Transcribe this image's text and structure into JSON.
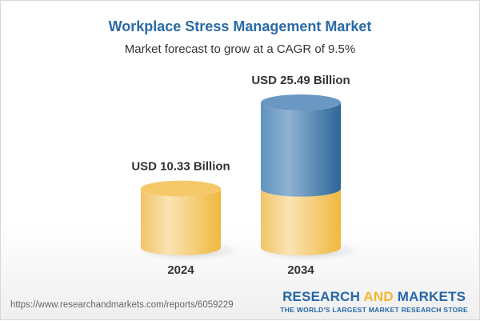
{
  "title": "Workplace Stress Management Market",
  "subtitle": "Market forecast to grow at a CAGR of 9.5%",
  "chart_data": {
    "type": "bar",
    "style": "3d-cylinder",
    "categories": [
      "2024",
      "2034"
    ],
    "values": [
      10.33,
      25.49
    ],
    "data_labels": [
      "USD 10.33 Billion",
      "USD 25.49 Billion"
    ],
    "unit": "USD Billion",
    "colors": {
      "base": "#f2c255",
      "growth": "#3f7fb3"
    }
  },
  "footer": {
    "url": "https://www.researchandmarkets.com/reports/6059229",
    "logo_main_1": "RESEARCH ",
    "logo_main_2": "AND",
    "logo_main_3": " MARKETS",
    "logo_tagline": "THE WORLD'S LARGEST MARKET RESEARCH STORE"
  }
}
